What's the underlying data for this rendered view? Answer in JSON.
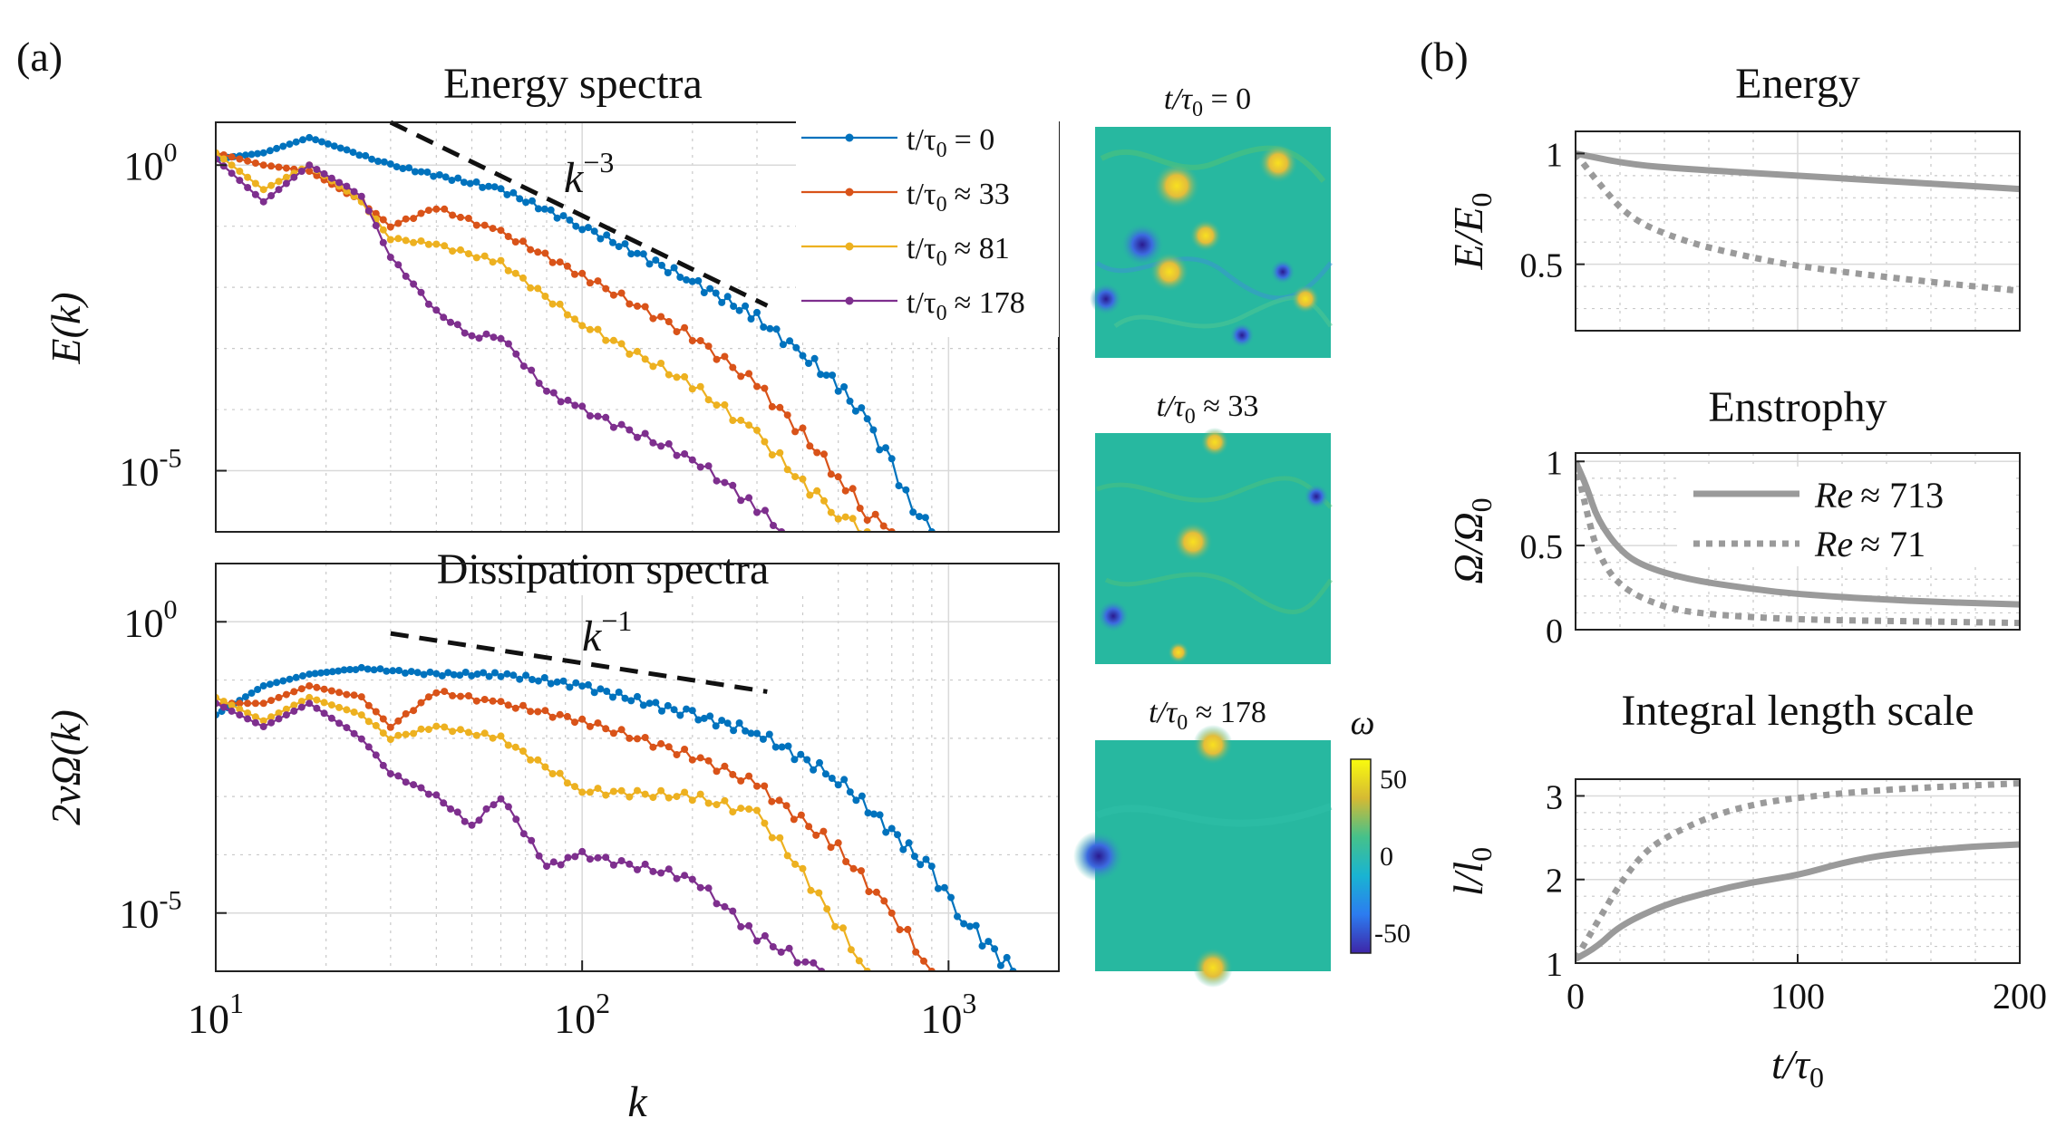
{
  "panel_labels": [
    "(a)",
    "(b)"
  ],
  "chart_data": [
    {
      "id": "energy-spectra",
      "type": "line",
      "title": "Energy spectra",
      "xlabel": "",
      "ylabel": "E(k)",
      "xscale": "log",
      "yscale": "log",
      "xlim": [
        10,
        2000
      ],
      "ylim_log10": [
        -6,
        0.7
      ],
      "yticks": [
        {
          "value_log10": 0,
          "base": "10",
          "exp": "0"
        },
        {
          "value_log10": -5,
          "base": "10",
          "exp": "-5"
        }
      ],
      "annotation": {
        "base": "k",
        "exp": "−3",
        "line_k": [
          30,
          320
        ],
        "line_log10": [
          0.7,
          -2.3
        ]
      },
      "legend": {
        "position": "top-right",
        "prefix": "t/τ",
        "sub": "0",
        "entries": [
          "= 0",
          "≈ 33",
          "≈ 81",
          "≈ 178"
        ]
      },
      "series": [
        {
          "name": "t/τ0 = 0",
          "color": "#0072BD",
          "points": [
            [
              10,
              0.1
            ],
            [
              13.5,
              0.2
            ],
            [
              18,
              0.45
            ],
            [
              30,
              0.0
            ],
            [
              60,
              -0.4
            ],
            [
              100,
              -1.0
            ],
            [
              200,
              -1.9
            ],
            [
              300,
              -2.5
            ],
            [
              400,
              -3.1
            ],
            [
              500,
              -3.6
            ],
            [
              600,
              -4.2
            ],
            [
              700,
              -4.9
            ],
            [
              800,
              -5.6
            ],
            [
              900,
              -6.0
            ]
          ]
        },
        {
          "name": "t/τ0 ≈ 33",
          "color": "#D95319",
          "points": [
            [
              10,
              0.2
            ],
            [
              13.5,
              0.0
            ],
            [
              18,
              -0.1
            ],
            [
              25,
              -0.6
            ],
            [
              30,
              -1.0
            ],
            [
              40,
              -0.7
            ],
            [
              60,
              -1.1
            ],
            [
              100,
              -1.8
            ],
            [
              200,
              -2.8
            ],
            [
              300,
              -3.6
            ],
            [
              400,
              -4.4
            ],
            [
              500,
              -5.1
            ],
            [
              600,
              -5.7
            ],
            [
              700,
              -6.0
            ]
          ]
        },
        {
          "name": "t/τ0 ≈ 81",
          "color": "#EDB120",
          "points": [
            [
              10,
              0.2
            ],
            [
              13.5,
              -0.4
            ],
            [
              18,
              0.0
            ],
            [
              25,
              -0.6
            ],
            [
              30,
              -1.2
            ],
            [
              40,
              -1.3
            ],
            [
              60,
              -1.6
            ],
            [
              100,
              -2.6
            ],
            [
              200,
              -3.6
            ],
            [
              300,
              -4.4
            ],
            [
              400,
              -5.2
            ],
            [
              500,
              -5.7
            ],
            [
              600,
              -6.0
            ]
          ]
        },
        {
          "name": "t/τ0 ≈ 178",
          "color": "#7E2F8E",
          "points": [
            [
              10,
              0.1
            ],
            [
              13.5,
              -0.6
            ],
            [
              18,
              0.0
            ],
            [
              25,
              -0.5
            ],
            [
              30,
              -1.5
            ],
            [
              40,
              -2.4
            ],
            [
              50,
              -2.8
            ],
            [
              60,
              -2.8
            ],
            [
              80,
              -3.7
            ],
            [
              100,
              -4.0
            ],
            [
              200,
              -4.8
            ],
            [
              300,
              -5.6
            ],
            [
              350,
              -6.0
            ]
          ]
        }
      ]
    },
    {
      "id": "dissipation-spectra",
      "type": "line",
      "title": "Dissipation spectra",
      "xlabel": "k",
      "ylabel": "2νΩ(k)",
      "xscale": "log",
      "yscale": "log",
      "xlim": [
        10,
        2000
      ],
      "xticks": [
        {
          "value": 10,
          "base": "10",
          "exp": "1"
        },
        {
          "value": 100,
          "base": "10",
          "exp": "2"
        },
        {
          "value": 1000,
          "base": "10",
          "exp": "3"
        }
      ],
      "ylim_log10": [
        -6,
        1.0
      ],
      "yticks": [
        {
          "value_log10": 0,
          "base": "10",
          "exp": "0"
        },
        {
          "value_log10": -5,
          "base": "10",
          "exp": "-5"
        }
      ],
      "annotation": {
        "base": "k",
        "exp": "−1",
        "line_k": [
          30,
          320
        ],
        "line_log10": [
          -0.2,
          -1.2
        ]
      },
      "series": [
        {
          "name": "t/τ0 = 0",
          "color": "#0072BD",
          "points": [
            [
              10,
              -1.6
            ],
            [
              13.5,
              -1.1
            ],
            [
              18,
              -0.9
            ],
            [
              25,
              -0.8
            ],
            [
              40,
              -0.9
            ],
            [
              60,
              -0.9
            ],
            [
              100,
              -1.1
            ],
            [
              200,
              -1.6
            ],
            [
              300,
              -1.9
            ],
            [
              500,
              -2.7
            ],
            [
              700,
              -3.6
            ],
            [
              900,
              -4.3
            ],
            [
              1100,
              -5.1
            ],
            [
              1500,
              -6.0
            ]
          ]
        },
        {
          "name": "t/τ0 ≈ 33",
          "color": "#D95319",
          "points": [
            [
              10,
              -1.4
            ],
            [
              13.5,
              -1.4
            ],
            [
              18,
              -1.1
            ],
            [
              25,
              -1.3
            ],
            [
              30,
              -1.8
            ],
            [
              40,
              -1.2
            ],
            [
              60,
              -1.4
            ],
            [
              100,
              -1.7
            ],
            [
              200,
              -2.3
            ],
            [
              300,
              -2.8
            ],
            [
              500,
              -3.9
            ],
            [
              700,
              -5.0
            ],
            [
              900,
              -6.0
            ]
          ]
        },
        {
          "name": "t/τ0 ≈ 81",
          "color": "#EDB120",
          "points": [
            [
              10,
              -1.3
            ],
            [
              13.5,
              -1.7
            ],
            [
              18,
              -1.3
            ],
            [
              25,
              -1.6
            ],
            [
              30,
              -2.0
            ],
            [
              40,
              -1.8
            ],
            [
              60,
              -2.0
            ],
            [
              100,
              -2.9
            ],
            [
              200,
              -3.0
            ],
            [
              300,
              -3.3
            ],
            [
              400,
              -4.3
            ],
            [
              600,
              -6.0
            ]
          ]
        },
        {
          "name": "t/τ0 ≈ 178",
          "color": "#7E2F8E",
          "points": [
            [
              10,
              -1.4
            ],
            [
              13.5,
              -1.8
            ],
            [
              18,
              -1.4
            ],
            [
              25,
              -2.0
            ],
            [
              30,
              -2.6
            ],
            [
              40,
              -3.0
            ],
            [
              50,
              -3.5
            ],
            [
              60,
              -3.0
            ],
            [
              80,
              -4.2
            ],
            [
              100,
              -4.0
            ],
            [
              200,
              -4.4
            ],
            [
              300,
              -5.4
            ],
            [
              450,
              -6.0
            ]
          ]
        }
      ]
    },
    {
      "id": "energy-decay",
      "type": "line",
      "title": "Energy",
      "xlabel": "",
      "ylabel": "E/E",
      "ylabel_sub": "0",
      "xlim": [
        0,
        200
      ],
      "ylim": [
        0.2,
        1.1
      ],
      "yticks": [
        0.5,
        1
      ],
      "ytick_labels": [
        "0.5",
        "1"
      ],
      "series": [
        {
          "name": "Re ≈ 713",
          "style": "solid",
          "points": [
            [
              0,
              1.0
            ],
            [
              25,
              0.95
            ],
            [
              50,
              0.93
            ],
            [
              100,
              0.9
            ],
            [
              150,
              0.87
            ],
            [
              200,
              0.84
            ]
          ]
        },
        {
          "name": "Re ≈ 71",
          "style": "dotted",
          "points": [
            [
              0,
              1.0
            ],
            [
              10,
              0.87
            ],
            [
              25,
              0.7
            ],
            [
              50,
              0.6
            ],
            [
              75,
              0.54
            ],
            [
              100,
              0.49
            ],
            [
              150,
              0.43
            ],
            [
              200,
              0.38
            ]
          ]
        }
      ]
    },
    {
      "id": "enstrophy-decay",
      "type": "line",
      "title": "Enstrophy",
      "xlabel": "",
      "ylabel": "Ω/Ω",
      "ylabel_sub": "0",
      "xlim": [
        0,
        200
      ],
      "ylim": [
        0,
        1.05
      ],
      "yticks": [
        0,
        0.5,
        1
      ],
      "ytick_labels": [
        "0",
        "0.5",
        "1"
      ],
      "legend": {
        "position": "top-right",
        "entries": [
          {
            "text": "≈ 713",
            "style": "solid"
          },
          {
            "text": "≈ 71",
            "style": "dotted"
          }
        ],
        "prefix": "Re"
      },
      "series": [
        {
          "name": "Re ≈ 713",
          "style": "solid",
          "points": [
            [
              0,
              1.0
            ],
            [
              5,
              0.85
            ],
            [
              10,
              0.65
            ],
            [
              20,
              0.47
            ],
            [
              30,
              0.38
            ],
            [
              50,
              0.3
            ],
            [
              75,
              0.25
            ],
            [
              100,
              0.21
            ],
            [
              150,
              0.17
            ],
            [
              200,
              0.15
            ]
          ]
        },
        {
          "name": "Re ≈ 71",
          "style": "dotted",
          "points": [
            [
              0,
              1.0
            ],
            [
              5,
              0.7
            ],
            [
              10,
              0.45
            ],
            [
              20,
              0.25
            ],
            [
              40,
              0.13
            ],
            [
              60,
              0.09
            ],
            [
              100,
              0.06
            ],
            [
              150,
              0.05
            ],
            [
              200,
              0.04
            ]
          ]
        }
      ]
    },
    {
      "id": "integral-length-scale",
      "type": "line",
      "title": "Integral length scale",
      "xlabel": "t/τ",
      "xlabel_sub": "0",
      "ylabel": "l/l",
      "ylabel_sub": "0",
      "xlim": [
        0,
        200
      ],
      "xticks": [
        0,
        100,
        200
      ],
      "xtick_labels": [
        "0",
        "100",
        "200"
      ],
      "ylim": [
        1,
        3.2
      ],
      "yticks": [
        1,
        2,
        3
      ],
      "ytick_labels": [
        "1",
        "2",
        "3"
      ],
      "series": [
        {
          "name": "Re ≈ 713",
          "style": "solid",
          "points": [
            [
              0,
              1.05
            ],
            [
              10,
              1.2
            ],
            [
              20,
              1.45
            ],
            [
              40,
              1.7
            ],
            [
              60,
              1.85
            ],
            [
              80,
              1.97
            ],
            [
              100,
              2.05
            ],
            [
              120,
              2.2
            ],
            [
              140,
              2.3
            ],
            [
              170,
              2.38
            ],
            [
              200,
              2.42
            ]
          ]
        },
        {
          "name": "Re ≈ 71",
          "style": "dotted",
          "points": [
            [
              0,
              1.05
            ],
            [
              10,
              1.5
            ],
            [
              20,
              1.95
            ],
            [
              30,
              2.3
            ],
            [
              40,
              2.5
            ],
            [
              60,
              2.75
            ],
            [
              80,
              2.9
            ],
            [
              100,
              2.98
            ],
            [
              140,
              3.08
            ],
            [
              200,
              3.15
            ]
          ]
        }
      ]
    }
  ],
  "snapshots": {
    "items": [
      {
        "label_prefix": "t/τ",
        "label_sub": "0",
        "label_suffix": " = 0",
        "vortex_count": 9
      },
      {
        "label_prefix": "t/τ",
        "label_sub": "0",
        "label_suffix": " ≈ 33",
        "vortex_count": 5
      },
      {
        "label_prefix": "t/τ",
        "label_sub": "0",
        "label_suffix": " ≈ 178",
        "vortex_count": 3
      }
    ],
    "colorbar": {
      "label": "ω",
      "ticks": [
        "50",
        "0",
        "-50"
      ],
      "range": [
        -60,
        60
      ]
    }
  }
}
